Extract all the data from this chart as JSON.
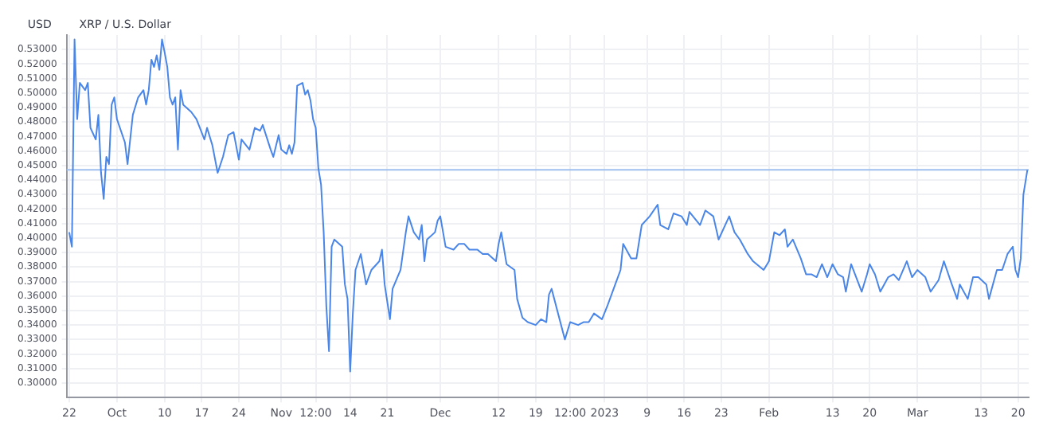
{
  "chart_data": {
    "type": "line",
    "title": "XRP / U.S. Dollar",
    "ylabel": "USD",
    "grid": true,
    "legend": false,
    "xlim": [
      "2022-09-21T12:00",
      "2023-03-22"
    ],
    "xticks": [
      {
        "value": "2022-09-22",
        "label": "22"
      },
      {
        "value": "2022-10-01",
        "label": "Oct"
      },
      {
        "value": "2022-10-10",
        "label": "10"
      },
      {
        "value": "2022-10-17",
        "label": "17"
      },
      {
        "value": "2022-10-24",
        "label": "24"
      },
      {
        "value": "2022-11-01",
        "label": "Nov"
      },
      {
        "value": "2022-11-07T12:00",
        "label": "12:00"
      },
      {
        "value": "2022-11-14",
        "label": "14"
      },
      {
        "value": "2022-11-21",
        "label": "21"
      },
      {
        "value": "2022-12-01",
        "label": "Dec"
      },
      {
        "value": "2022-12-12",
        "label": "12"
      },
      {
        "value": "2022-12-19",
        "label": "19"
      },
      {
        "value": "2022-12-25T12:00",
        "label": "12:00"
      },
      {
        "value": "2023-01-01",
        "label": "2023"
      },
      {
        "value": "2023-01-09",
        "label": "9"
      },
      {
        "value": "2023-01-16",
        "label": "16"
      },
      {
        "value": "2023-01-23",
        "label": "23"
      },
      {
        "value": "2023-02-01",
        "label": "Feb"
      },
      {
        "value": "2023-02-13",
        "label": "13"
      },
      {
        "value": "2023-02-20",
        "label": "20"
      },
      {
        "value": "2023-03-01",
        "label": "Mar"
      },
      {
        "value": "2023-03-13",
        "label": "13"
      },
      {
        "value": "2023-03-20",
        "label": "20"
      }
    ],
    "ylim": [
      0.29,
      0.54
    ],
    "yticks": [
      {
        "value": 0.3,
        "label": "0.30000"
      },
      {
        "value": 0.31,
        "label": "0.31000"
      },
      {
        "value": 0.32,
        "label": "0.32000"
      },
      {
        "value": 0.33,
        "label": "0.33000"
      },
      {
        "value": 0.34,
        "label": "0.34000"
      },
      {
        "value": 0.35,
        "label": "0.35000"
      },
      {
        "value": 0.36,
        "label": "0.36000"
      },
      {
        "value": 0.37,
        "label": "0.37000"
      },
      {
        "value": 0.38,
        "label": "0.38000"
      },
      {
        "value": 0.39,
        "label": "0.39000"
      },
      {
        "value": 0.4,
        "label": "0.40000"
      },
      {
        "value": 0.41,
        "label": "0.41000"
      },
      {
        "value": 0.42,
        "label": "0.42000"
      },
      {
        "value": 0.43,
        "label": "0.43000"
      },
      {
        "value": 0.44,
        "label": "0.44000"
      },
      {
        "value": 0.45,
        "label": "0.45000"
      },
      {
        "value": 0.46,
        "label": "0.46000"
      },
      {
        "value": 0.47,
        "label": "0.47000"
      },
      {
        "value": 0.48,
        "label": "0.48000"
      },
      {
        "value": 0.49,
        "label": "0.49000"
      },
      {
        "value": 0.5,
        "label": "0.50000"
      },
      {
        "value": 0.51,
        "label": "0.51000"
      },
      {
        "value": 0.52,
        "label": "0.52000"
      },
      {
        "value": 0.53,
        "label": "0.53000"
      }
    ],
    "ref_lines": [
      {
        "axis": "y",
        "value": 0.447,
        "color": "#9fbfee"
      }
    ],
    "series": [
      {
        "color": "#4a86e8",
        "x": [
          "2022-09-22",
          "2022-09-22T12:00",
          "2022-09-23",
          "2022-09-23T12:00",
          "2022-09-24",
          "2022-09-25",
          "2022-09-25T12:00",
          "2022-09-26",
          "2022-09-27",
          "2022-09-27T12:00",
          "2022-09-28",
          "2022-09-28T12:00",
          "2022-09-29",
          "2022-09-29T12:00",
          "2022-09-30",
          "2022-09-30T12:00",
          "2022-10-01",
          "2022-10-02T12:00",
          "2022-10-03",
          "2022-10-04",
          "2022-10-05",
          "2022-10-06",
          "2022-10-06T12:00",
          "2022-10-07",
          "2022-10-07T12:00",
          "2022-10-08",
          "2022-10-08T12:00",
          "2022-10-09",
          "2022-10-09T12:00",
          "2022-10-10",
          "2022-10-10T12:00",
          "2022-10-11",
          "2022-10-11T12:00",
          "2022-10-12",
          "2022-10-12T12:00",
          "2022-10-13",
          "2022-10-13T12:00",
          "2022-10-15",
          "2022-10-16",
          "2022-10-17T12:00",
          "2022-10-18",
          "2022-10-19",
          "2022-10-20",
          "2022-10-21",
          "2022-10-22",
          "2022-10-23",
          "2022-10-24",
          "2022-10-24T12:00",
          "2022-10-26",
          "2022-10-27",
          "2022-10-28",
          "2022-10-28T12:00",
          "2022-10-30",
          "2022-10-30T12:00",
          "2022-10-31T12:00",
          "2022-11-01",
          "2022-11-02",
          "2022-11-02T12:00",
          "2022-11-03",
          "2022-11-03T12:00",
          "2022-11-04",
          "2022-11-05",
          "2022-11-05T12:00",
          "2022-11-06",
          "2022-11-06T12:00",
          "2022-11-07",
          "2022-11-07T12:00",
          "2022-11-08",
          "2022-11-08T12:00",
          "2022-11-09",
          "2022-11-09T12:00",
          "2022-11-10",
          "2022-11-10T12:00",
          "2022-11-11",
          "2022-11-12T12:00",
          "2022-11-13",
          "2022-11-13T12:00",
          "2022-11-14",
          "2022-11-14T12:00",
          "2022-11-15",
          "2022-11-16",
          "2022-11-17",
          "2022-11-18",
          "2022-11-19T12:00",
          "2022-11-20",
          "2022-11-20T12:00",
          "2022-11-21T12:00",
          "2022-11-22",
          "2022-11-23T12:00",
          "2022-11-24T12:00",
          "2022-11-25",
          "2022-11-26",
          "2022-11-27",
          "2022-11-27T12:00",
          "2022-11-28",
          "2022-11-28T12:00",
          "2022-11-30",
          "2022-11-30T12:00",
          "2022-12-01",
          "2022-12-02",
          "2022-12-03T12:00",
          "2022-12-04T12:00",
          "2022-12-05T12:00",
          "2022-12-06T12:00",
          "2022-12-08",
          "2022-12-09",
          "2022-12-10",
          "2022-12-11T12:00",
          "2022-12-12",
          "2022-12-12T12:00",
          "2022-12-13T12:00",
          "2022-12-15",
          "2022-12-15T12:00",
          "2022-12-16T12:00",
          "2022-12-17T12:00",
          "2022-12-19",
          "2022-12-20",
          "2022-12-21",
          "2022-12-21T12:00",
          "2022-12-22",
          "2022-12-23T12:00",
          "2022-12-24T12:00",
          "2022-12-25T12:00",
          "2022-12-27",
          "2022-12-28",
          "2022-12-29",
          "2022-12-30",
          "2022-12-31T12:00",
          "2023-01-01T12:00",
          "2023-01-03",
          "2023-01-04",
          "2023-01-04T12:00",
          "2023-01-06",
          "2023-01-07",
          "2023-01-08",
          "2023-01-09T12:00",
          "2023-01-11",
          "2023-01-11T12:00",
          "2023-01-13",
          "2023-01-14",
          "2023-01-15T12:00",
          "2023-01-16T12:00",
          "2023-01-17",
          "2023-01-19",
          "2023-01-20",
          "2023-01-21T12:00",
          "2023-01-22T12:00",
          "2023-01-24T12:00",
          "2023-01-25T12:00",
          "2023-01-26T12:00",
          "2023-01-28",
          "2023-01-29",
          "2023-01-31",
          "2023-02-01",
          "2023-02-02",
          "2023-02-03",
          "2023-02-04",
          "2023-02-04T12:00",
          "2023-02-05T12:00",
          "2023-02-07",
          "2023-02-08",
          "2023-02-09",
          "2023-02-10",
          "2023-02-11",
          "2023-02-12",
          "2023-02-13",
          "2023-02-14",
          "2023-02-15",
          "2023-02-15T12:00",
          "2023-02-16T12:00",
          "2023-02-18T12:00",
          "2023-02-19T12:00",
          "2023-02-20",
          "2023-02-21",
          "2023-02-22",
          "2023-02-23T12:00",
          "2023-02-24T12:00",
          "2023-02-25T12:00",
          "2023-02-27",
          "2023-02-28",
          "2023-03-01",
          "2023-03-02T12:00",
          "2023-03-03T12:00",
          "2023-03-05",
          "2023-03-06",
          "2023-03-07T12:00",
          "2023-03-08T12:00",
          "2023-03-09",
          "2023-03-10T12:00",
          "2023-03-11T12:00",
          "2023-03-12T12:00",
          "2023-03-14",
          "2023-03-14T12:00",
          "2023-03-16",
          "2023-03-17",
          "2023-03-18",
          "2023-03-19",
          "2023-03-19T12:00",
          "2023-03-20",
          "2023-03-20T12:00",
          "2023-03-21",
          "2023-03-21T18:00"
        ],
        "values": [
          0.404,
          0.394,
          0.537,
          0.482,
          0.507,
          0.502,
          0.507,
          0.476,
          0.468,
          0.485,
          0.445,
          0.427,
          0.456,
          0.451,
          0.492,
          0.497,
          0.482,
          0.466,
          0.451,
          0.485,
          0.497,
          0.502,
          0.492,
          0.502,
          0.523,
          0.518,
          0.526,
          0.516,
          0.537,
          0.528,
          0.518,
          0.497,
          0.492,
          0.497,
          0.461,
          0.502,
          0.492,
          0.487,
          0.482,
          0.468,
          0.476,
          0.464,
          0.445,
          0.456,
          0.471,
          0.473,
          0.454,
          0.468,
          0.461,
          0.476,
          0.474,
          0.478,
          0.461,
          0.456,
          0.471,
          0.461,
          0.458,
          0.464,
          0.458,
          0.466,
          0.505,
          0.507,
          0.499,
          0.502,
          0.495,
          0.482,
          0.476,
          0.448,
          0.437,
          0.404,
          0.353,
          0.322,
          0.394,
          0.399,
          0.394,
          0.368,
          0.358,
          0.308,
          0.348,
          0.378,
          0.389,
          0.368,
          0.378,
          0.384,
          0.392,
          0.368,
          0.344,
          0.365,
          0.378,
          0.404,
          0.415,
          0.404,
          0.399,
          0.409,
          0.384,
          0.399,
          0.404,
          0.412,
          0.415,
          0.394,
          0.392,
          0.396,
          0.396,
          0.392,
          0.392,
          0.389,
          0.389,
          0.384,
          0.396,
          0.404,
          0.382,
          0.378,
          0.358,
          0.345,
          0.342,
          0.34,
          0.344,
          0.342,
          0.361,
          0.365,
          0.344,
          0.33,
          0.342,
          0.34,
          0.342,
          0.342,
          0.348,
          0.344,
          0.353,
          0.368,
          0.378,
          0.396,
          0.386,
          0.386,
          0.409,
          0.415,
          0.423,
          0.409,
          0.406,
          0.417,
          0.415,
          0.409,
          0.418,
          0.409,
          0.419,
          0.415,
          0.399,
          0.415,
          0.404,
          0.399,
          0.389,
          0.384,
          0.378,
          0.384,
          0.404,
          0.402,
          0.406,
          0.394,
          0.399,
          0.386,
          0.375,
          0.375,
          0.373,
          0.382,
          0.373,
          0.382,
          0.375,
          0.373,
          0.363,
          0.382,
          0.363,
          0.375,
          0.382,
          0.375,
          0.363,
          0.373,
          0.375,
          0.371,
          0.384,
          0.373,
          0.378,
          0.373,
          0.363,
          0.371,
          0.384,
          0.368,
          0.358,
          0.368,
          0.358,
          0.373,
          0.373,
          0.368,
          0.358,
          0.378,
          0.378,
          0.389,
          0.394,
          0.378,
          0.373,
          0.386,
          0.43,
          0.447
        ]
      }
    ]
  }
}
